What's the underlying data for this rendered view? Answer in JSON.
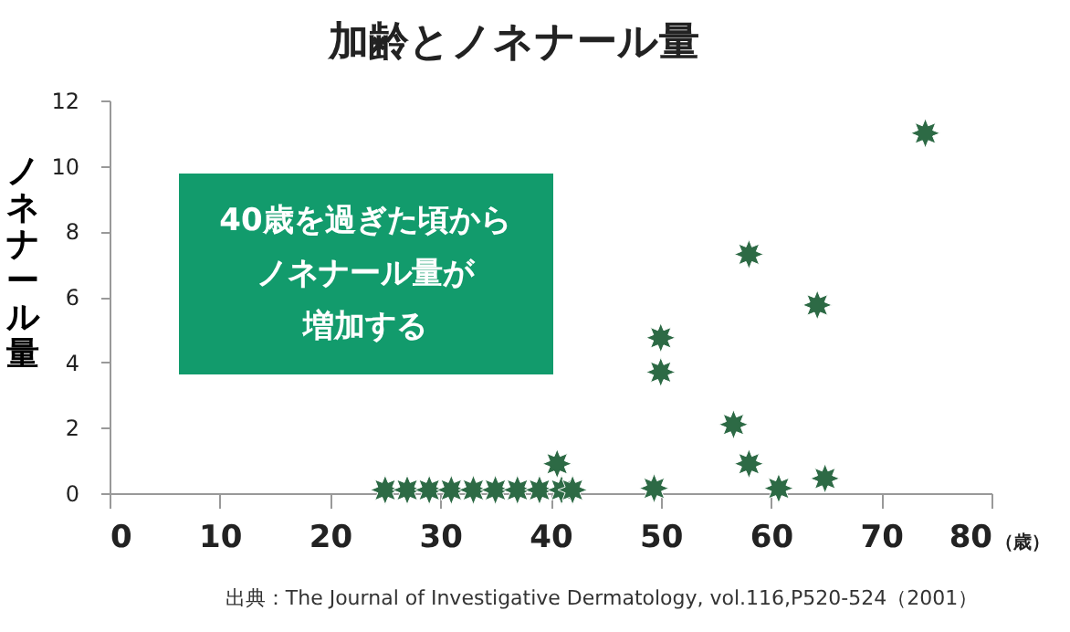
{
  "chart_data": {
    "type": "scatter",
    "title": "加齢とノネナール量",
    "xlabel": "（歳）",
    "ylabel": "ノネナール量",
    "x": [
      25,
      27,
      29,
      31,
      33,
      35,
      37,
      39,
      41,
      42,
      40.6,
      49.4,
      50,
      50,
      56.6,
      58,
      58,
      60.7,
      64.2,
      64.9,
      74
    ],
    "series": [
      {
        "color": "#2d6a45",
        "values": [
          0.1,
          0.1,
          0.1,
          0.1,
          0.1,
          0.1,
          0.1,
          0.1,
          0.1,
          0.1,
          0.9,
          0.15,
          3.7,
          4.75,
          2.1,
          0.9,
          7.3,
          0.15,
          5.75,
          0.45,
          11.0
        ]
      }
    ],
    "xlim": [
      0,
      80
    ],
    "xticks": [
      0,
      10,
      20,
      30,
      40,
      50,
      60,
      70,
      80
    ],
    "ylim": [
      0,
      12
    ],
    "yticks": [
      0,
      2,
      4,
      6,
      8,
      10,
      12
    ],
    "marker": "star",
    "grid": false,
    "annotations": [
      "40歳を過ぎた頃から",
      "ノネナール量が",
      "増加する",
      "出典：The Journal of Investigative Dermatology, vol.116,P520-524（2001）"
    ]
  }
}
